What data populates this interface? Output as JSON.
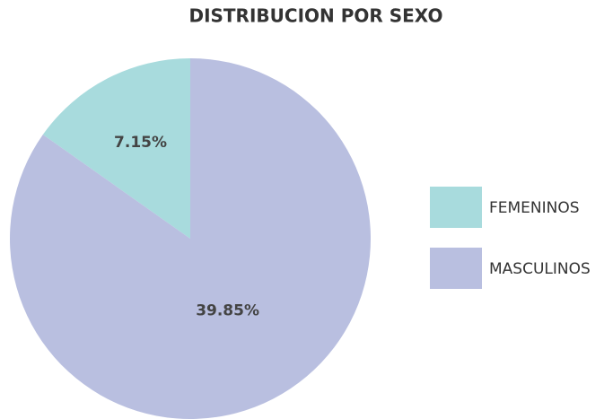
{
  "chart_data": {
    "type": "pie",
    "title": "DISTRIBUCION POR SEXO",
    "categories": [
      "FEMENINOS",
      "MASCULINOS"
    ],
    "values": [
      7.15,
      39.85
    ],
    "value_labels": [
      "7.15%",
      "39.85%"
    ],
    "colors": [
      "#a8dbdd",
      "#b9bfe0"
    ],
    "legend": "right"
  }
}
